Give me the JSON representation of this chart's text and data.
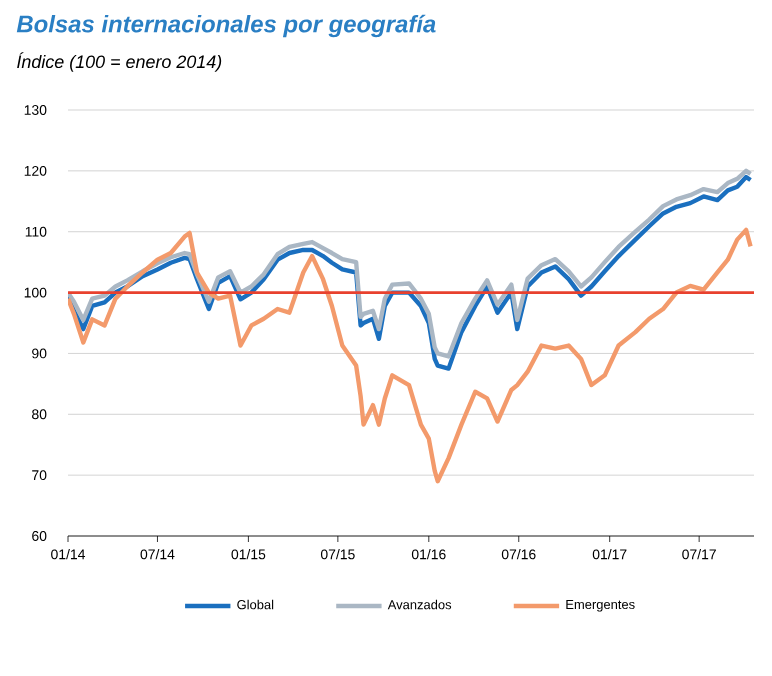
{
  "chart_data": {
    "type": "line",
    "title": "Bolsas internacionales por geografía",
    "subtitle": "Índice (100 = enero 2014)",
    "x": [
      "2014-01-01",
      "2014-01-13",
      "2014-02-01",
      "2014-02-19",
      "2014-03-16",
      "2014-04-07",
      "2014-05-01",
      "2014-06-01",
      "2014-07-01",
      "2014-07-28",
      "2014-08-25",
      "2014-09-04",
      "2014-09-19",
      "2014-10-13",
      "2014-11-01",
      "2014-11-25",
      "2014-12-16",
      "2015-01-07",
      "2015-02-01",
      "2015-03-01",
      "2015-03-25",
      "2015-04-22",
      "2015-05-10",
      "2015-06-01",
      "2015-06-19",
      "2015-07-10",
      "2015-08-07",
      "2015-08-16",
      "2015-08-22",
      "2015-09-10",
      "2015-09-22",
      "2015-10-04",
      "2015-10-19",
      "2015-11-22",
      "2015-12-16",
      "2016-01-01",
      "2016-01-13",
      "2016-01-19",
      "2016-02-10",
      "2016-03-07",
      "2016-04-04",
      "2016-04-28",
      "2016-05-19",
      "2016-06-16",
      "2016-06-28",
      "2016-07-19",
      "2016-08-16",
      "2016-09-13",
      "2016-10-10",
      "2016-11-04",
      "2016-11-25",
      "2016-12-22",
      "2017-01-19",
      "2017-02-22",
      "2017-03-22",
      "2017-04-19",
      "2017-05-16",
      "2017-06-13",
      "2017-07-10",
      "2017-08-07",
      "2017-08-28",
      "2017-09-16",
      "2017-10-04",
      "2017-10-13"
    ],
    "series": [
      {
        "name": "Global",
        "color": "#1a6fbf",
        "values": [
          99.5,
          97,
          94,
          97.8,
          98.4,
          100,
          101,
          102.7,
          103.8,
          104.9,
          105.7,
          105.5,
          102.2,
          97.3,
          101.6,
          102.7,
          98.9,
          100,
          102.2,
          105.4,
          106.5,
          107,
          107,
          106,
          104.9,
          103.8,
          103.3,
          94.6,
          95,
          95.7,
          92.4,
          97.8,
          100,
          100,
          97.8,
          95,
          89.1,
          88,
          87.5,
          93.5,
          97.8,
          101,
          96.7,
          100,
          94,
          101,
          103.3,
          104.3,
          102.2,
          99.5,
          101,
          103.5,
          106,
          108.7,
          110.9,
          113,
          114.1,
          114.7,
          115.8,
          115.2,
          116.8,
          117.4,
          119,
          118.5
        ]
      },
      {
        "name": "Avanzados",
        "color": "#aab7c4",
        "values": [
          100,
          98.5,
          95.5,
          99,
          99.5,
          101,
          102,
          103.5,
          104.8,
          105.8,
          106.5,
          106.3,
          103,
          98.5,
          102.5,
          103.5,
          100,
          101,
          103,
          106.3,
          107.5,
          108,
          108.3,
          107.3,
          106.5,
          105.5,
          105,
          96,
          96.5,
          97,
          94,
          99,
          101.3,
          101.5,
          99,
          96.5,
          91,
          90,
          89.5,
          95,
          99,
          102,
          98,
          101.3,
          95.5,
          102.3,
          104.5,
          105.5,
          103.5,
          101,
          102.5,
          105,
          107.5,
          110,
          112,
          114.2,
          115.3,
          116,
          117,
          116.5,
          118,
          118.7,
          120,
          119.5
        ]
      },
      {
        "name": "Emergentes",
        "color": "#f39a6b",
        "values": [
          99,
          96.5,
          91.8,
          95.6,
          94.6,
          99,
          101,
          103.3,
          105.4,
          106.5,
          109.2,
          109.8,
          103.3,
          100,
          99,
          99.5,
          91.3,
          94.6,
          95.7,
          97.3,
          96.7,
          103.3,
          106,
          102.2,
          97.8,
          91.3,
          88,
          83,
          78.3,
          81.5,
          78.3,
          82.6,
          86.4,
          84.8,
          78.3,
          76,
          70.7,
          69,
          72.8,
          78.3,
          83.7,
          82.6,
          78.8,
          84,
          84.8,
          87,
          91.3,
          90.8,
          91.3,
          89.1,
          84.8,
          86.4,
          91.3,
          93.5,
          95.7,
          97.3,
          100,
          101.1,
          100.5,
          103.3,
          105.4,
          108.7,
          110.3,
          107.6
        ]
      }
    ],
    "xlim": [
      "2014-01-01",
      "2017-10-20"
    ],
    "xticks": [
      {
        "value": "2014-01-01",
        "label": "01/14"
      },
      {
        "value": "2014-07-01",
        "label": "07/14"
      },
      {
        "value": "2015-01-01",
        "label": "01/15"
      },
      {
        "value": "2015-07-01",
        "label": "07/15"
      },
      {
        "value": "2016-01-01",
        "label": "01/16"
      },
      {
        "value": "2016-07-01",
        "label": "07/16"
      },
      {
        "value": "2017-01-01",
        "label": "01/17"
      },
      {
        "value": "2017-07-01",
        "label": "07/17"
      }
    ],
    "ylim": [
      60,
      130
    ],
    "yticks": [
      60,
      70,
      80,
      90,
      100,
      110,
      120,
      130
    ],
    "ref_lines": [
      {
        "axis": "y",
        "value": 100,
        "color": "#e8412e"
      }
    ],
    "grid": "y",
    "legend": "bottom",
    "marker": "none",
    "line_style": "solid"
  }
}
